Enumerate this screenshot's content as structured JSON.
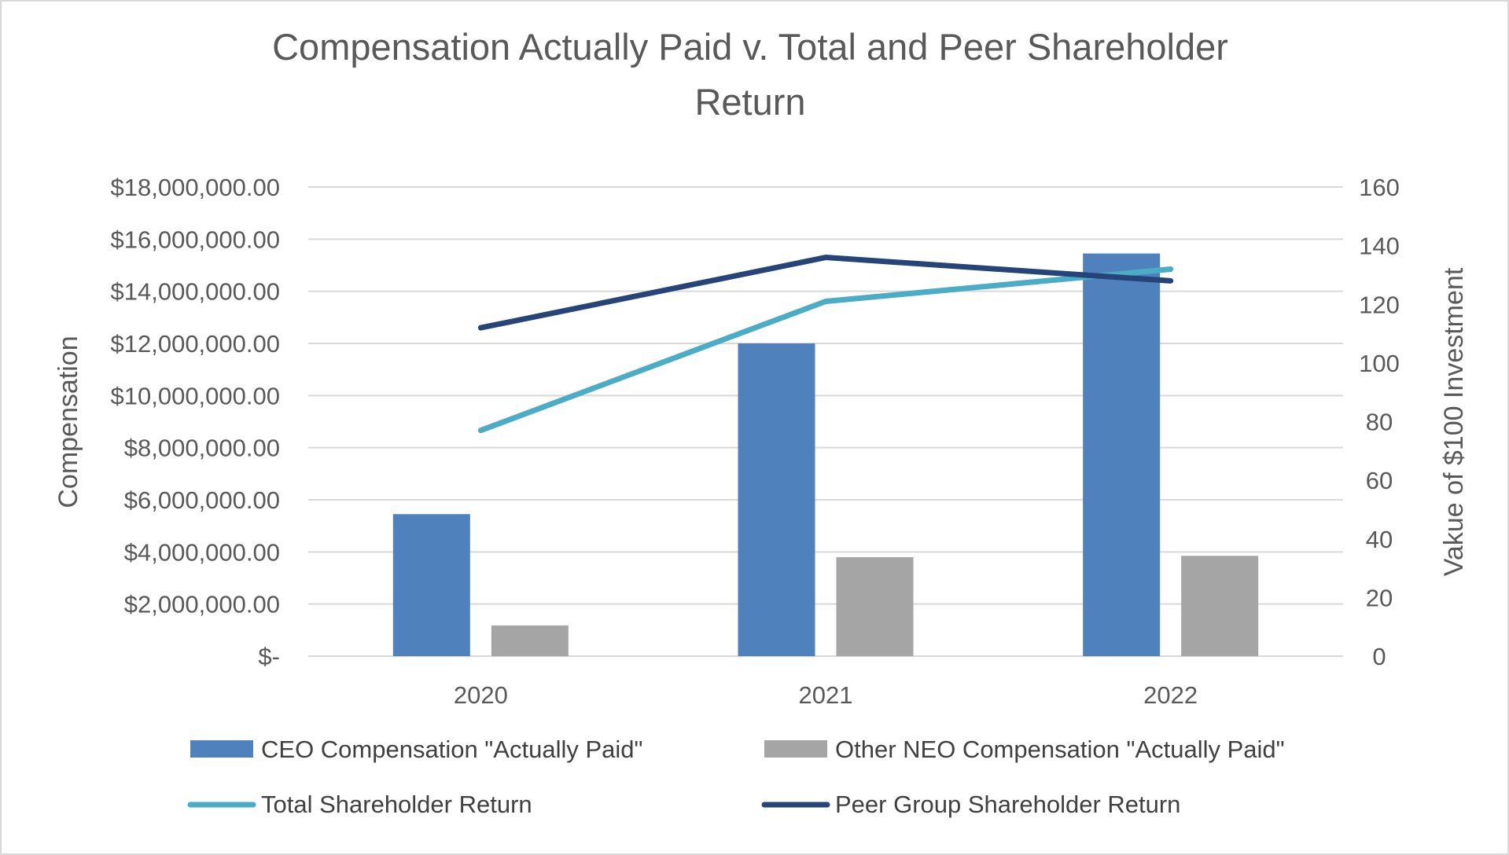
{
  "chart_data": {
    "type": "bar",
    "title": "Compensation Actually Paid v. Total and Peer Shareholder Return",
    "title_lines": [
      "Compensation Actually Paid v. Total and Peer Shareholder",
      "Return"
    ],
    "categories": [
      "2020",
      "2021",
      "2022"
    ],
    "ylabel": "Compensation",
    "y2label": "Vakue of $100 Investment",
    "ylim": [
      0,
      18000000
    ],
    "y2lim": [
      0,
      160
    ],
    "y_ticks": [
      0,
      2000000,
      4000000,
      6000000,
      8000000,
      10000000,
      12000000,
      14000000,
      16000000,
      18000000
    ],
    "y_tick_labels": [
      "$-",
      "$2,000,000.00",
      "$4,000,000.00",
      "$6,000,000.00",
      "$8,000,000.00",
      "$10,000,000.00",
      "$12,000,000.00",
      "$14,000,000.00",
      "$16,000,000.00",
      "$18,000,000.00"
    ],
    "y2_ticks": [
      0,
      20,
      40,
      60,
      80,
      100,
      120,
      140,
      160
    ],
    "y2_tick_labels": [
      "0",
      "20",
      "40",
      "60",
      "80",
      "100",
      "120",
      "140",
      "160"
    ],
    "grid": true,
    "legend_position": "bottom",
    "bar_series": [
      {
        "name": "CEO Compensation \"Actually Paid\"",
        "axis": "left",
        "color": "#4f81bd",
        "values": [
          5450000,
          12000000,
          15450000
        ]
      },
      {
        "name": "Other NEO Compensation \"Actually Paid\"",
        "axis": "left",
        "color": "#a5a5a5",
        "values": [
          1180000,
          3800000,
          3850000
        ]
      }
    ],
    "line_series": [
      {
        "name": "Total Shareholder Return",
        "axis": "right",
        "color": "#4bacc6",
        "values": [
          77,
          121,
          132
        ]
      },
      {
        "name": "Peer Group Shareholder Return",
        "axis": "right",
        "color": "#264478",
        "values": [
          112,
          136,
          128
        ]
      }
    ],
    "legend": [
      {
        "name": "CEO Compensation \"Actually Paid\"",
        "kind": "bar",
        "color": "#4f81bd"
      },
      {
        "name": "Other NEO Compensation \"Actually Paid\"",
        "kind": "bar",
        "color": "#a5a5a5"
      },
      {
        "name": "Total Shareholder Return",
        "kind": "line",
        "color": "#4bacc6"
      },
      {
        "name": "Peer Group Shareholder Return",
        "kind": "line",
        "color": "#264478"
      }
    ],
    "grid_color": "#d9d9d9",
    "text_color": "#595959"
  }
}
